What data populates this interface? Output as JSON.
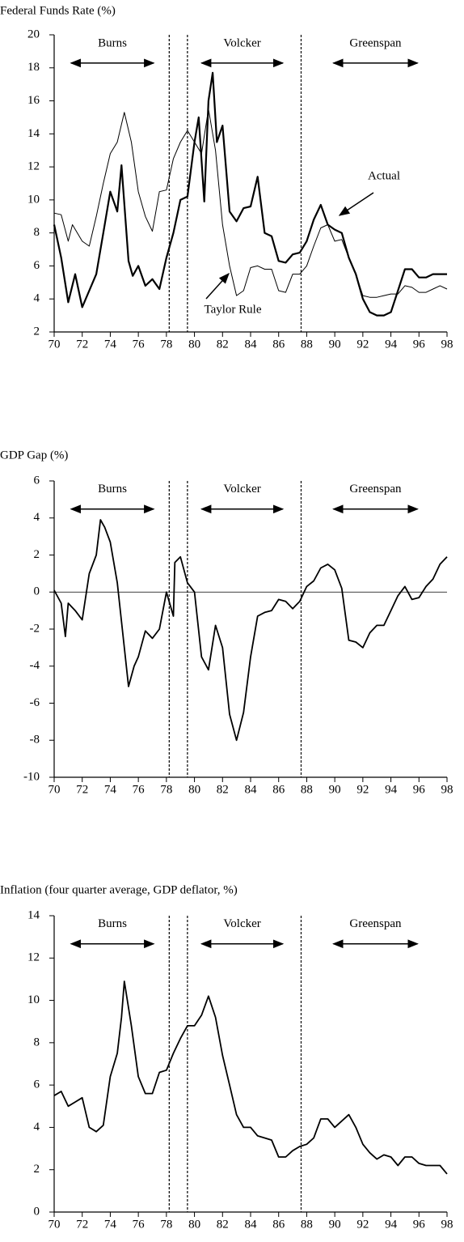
{
  "chart_data": [
    {
      "type": "line",
      "title": "Federal Funds Rate (%)",
      "xlim": [
        70,
        98
      ],
      "xticks": [
        70,
        72,
        74,
        76,
        78,
        80,
        82,
        84,
        86,
        88,
        90,
        92,
        94,
        96,
        98
      ],
      "ylim": [
        2,
        20
      ],
      "yticks": [
        2,
        4,
        6,
        8,
        10,
        12,
        14,
        16,
        18,
        20
      ],
      "vlines": [
        78.2,
        79.5,
        87.6
      ],
      "eras": [
        {
          "label": "Burns",
          "from": 71.2,
          "to": 77.1
        },
        {
          "label": "Volcker",
          "from": 80.5,
          "to": 86.3
        },
        {
          "label": "Greenspan",
          "from": 89.9,
          "to": 95.9
        }
      ],
      "series": [
        {
          "name": "Actual",
          "color": "#000",
          "line_width": 2.2,
          "x": [
            70,
            70.5,
            71,
            71.5,
            72,
            72.5,
            73,
            73.5,
            74,
            74.5,
            74.8,
            75.3,
            75.6,
            76,
            76.5,
            77,
            77.5,
            78,
            78.5,
            79,
            79.5,
            80,
            80.3,
            80.7,
            81,
            81.3,
            81.6,
            82,
            82.5,
            83,
            83.5,
            84,
            84.5,
            85,
            85.5,
            86,
            86.5,
            87,
            87.5,
            88,
            88.5,
            89,
            89.5,
            90,
            90.5,
            91,
            91.5,
            92,
            92.5,
            93,
            93.5,
            94,
            94.5,
            95,
            95.5,
            96,
            96.5,
            97,
            97.5,
            98
          ],
          "values": [
            8.5,
            6.5,
            3.8,
            5.5,
            3.5,
            4.5,
            5.5,
            8,
            10.5,
            9.3,
            12.1,
            6.3,
            5.4,
            6,
            4.8,
            5.2,
            4.6,
            6.5,
            8,
            10,
            10.2,
            13.5,
            15,
            9.9,
            16,
            17.7,
            13.5,
            14.5,
            9.3,
            8.7,
            9.5,
            9.6,
            11.4,
            8,
            7.8,
            6.3,
            6.2,
            6.7,
            6.8,
            7.5,
            8.8,
            9.7,
            8.5,
            8.2,
            8,
            6.5,
            5.5,
            4,
            3.2,
            3,
            3,
            3.2,
            4.5,
            5.8,
            5.8,
            5.3,
            5.3,
            5.5,
            5.5,
            5.5
          ]
        },
        {
          "name": "Taylor Rule",
          "color": "#000",
          "line_width": 1,
          "x": [
            70,
            70.5,
            71,
            71.3,
            72,
            72.5,
            73,
            73.5,
            74,
            74.5,
            75,
            75.5,
            76,
            76.5,
            77,
            77.5,
            78,
            78.5,
            79,
            79.5,
            80,
            80.5,
            81,
            81.5,
            82,
            82.5,
            83,
            83.5,
            84,
            84.5,
            85,
            85.5,
            86,
            86.5,
            87,
            87.5,
            88,
            88.5,
            89,
            89.5,
            90,
            90.5,
            91,
            91.5,
            92,
            92.5,
            93,
            93.5,
            94,
            94.5,
            95,
            95.5,
            96,
            96.5,
            97,
            97.5,
            98
          ],
          "values": [
            9.2,
            9.1,
            7.5,
            8.5,
            7.5,
            7.2,
            9,
            11,
            12.8,
            13.5,
            15.3,
            13.5,
            10.5,
            9,
            8.1,
            10.5,
            10.6,
            12.5,
            13.5,
            14.2,
            13.5,
            12.8,
            15.5,
            13,
            8.5,
            6,
            4.2,
            4.5,
            5.9,
            6,
            5.8,
            5.8,
            4.5,
            4.4,
            5.5,
            5.5,
            6,
            7.2,
            8.3,
            8.5,
            7.5,
            7.6,
            6.5,
            5.5,
            4.2,
            4.1,
            4.1,
            4.2,
            4.3,
            4.3,
            4.8,
            4.7,
            4.4,
            4.4,
            4.6,
            4.8,
            4.6
          ]
        }
      ]
    },
    {
      "type": "line",
      "title": "GDP Gap (%)",
      "xlim": [
        70,
        98
      ],
      "xticks": [
        70,
        72,
        74,
        76,
        78,
        80,
        82,
        84,
        86,
        88,
        90,
        92,
        94,
        96,
        98
      ],
      "ylim": [
        -10,
        6
      ],
      "yticks": [
        -10,
        -8,
        -6,
        -4,
        -2,
        0,
        2,
        4,
        6
      ],
      "hline": 0,
      "vlines": [
        78.2,
        79.5,
        87.6
      ],
      "eras": [
        {
          "label": "Burns",
          "from": 71.2,
          "to": 77.1
        },
        {
          "label": "Volcker",
          "from": 80.5,
          "to": 86.3
        },
        {
          "label": "Greenspan",
          "from": 89.9,
          "to": 95.9
        }
      ],
      "series": [
        {
          "color": "#000",
          "line_width": 1.8,
          "x": [
            70,
            70.5,
            70.8,
            71,
            71.5,
            72,
            72.5,
            73,
            73.3,
            73.6,
            74,
            74.5,
            75,
            75.3,
            75.7,
            76,
            76.5,
            77,
            77.5,
            78,
            78.5,
            78.6,
            79,
            79.5,
            80,
            80.5,
            81,
            81.5,
            82,
            82.5,
            83,
            83.5,
            84,
            84.5,
            85,
            85.5,
            86,
            86.5,
            87,
            87.5,
            88,
            88.5,
            89,
            89.5,
            90,
            90.5,
            91,
            91.5,
            92,
            92.5,
            93,
            93.5,
            94,
            94.5,
            95,
            95.5,
            96,
            96.5,
            97,
            97.5,
            98
          ],
          "values": [
            0.1,
            -0.6,
            -2.4,
            -0.6,
            -1,
            -1.5,
            1,
            2,
            3.9,
            3.5,
            2.7,
            0.5,
            -3,
            -5.1,
            -4,
            -3.5,
            -2.1,
            -2.5,
            -2,
            0,
            -1.3,
            1.6,
            1.9,
            0.5,
            0,
            -3.5,
            -4.2,
            -1.8,
            -3,
            -6.6,
            -8,
            -6.5,
            -3.5,
            -1.3,
            -1.1,
            -1,
            -0.4,
            -0.5,
            -0.9,
            -0.5,
            0.3,
            0.6,
            1.3,
            1.5,
            1.2,
            0.2,
            -2.6,
            -2.7,
            -3,
            -2.2,
            -1.8,
            -1.8,
            -1,
            -0.2,
            0.3,
            -0.4,
            -0.3,
            0.3,
            0.7,
            1.5,
            1.9
          ]
        }
      ]
    },
    {
      "type": "line",
      "title": "Inflation (four quarter average, GDP deflator, %)",
      "xlim": [
        70,
        98
      ],
      "xticks": [
        70,
        72,
        74,
        76,
        78,
        80,
        82,
        84,
        86,
        88,
        90,
        92,
        94,
        96,
        98
      ],
      "ylim": [
        0,
        14
      ],
      "yticks": [
        0,
        2,
        4,
        6,
        8,
        10,
        12,
        14
      ],
      "vlines": [
        78.2,
        79.5,
        87.6
      ],
      "eras": [
        {
          "label": "Burns",
          "from": 71.2,
          "to": 77.1
        },
        {
          "label": "Volcker",
          "from": 80.5,
          "to": 86.3
        },
        {
          "label": "Greenspan",
          "from": 89.9,
          "to": 95.9
        }
      ],
      "series": [
        {
          "color": "#000",
          "line_width": 1.8,
          "x": [
            70,
            70.5,
            71,
            71.5,
            72,
            72.5,
            73,
            73.5,
            74,
            74.5,
            74.8,
            75,
            75.5,
            76,
            76.5,
            77,
            77.5,
            78,
            78.5,
            79,
            79.5,
            80,
            80.5,
            81,
            81.5,
            82,
            82.5,
            83,
            83.5,
            84,
            84.5,
            85,
            85.5,
            86,
            86.5,
            87,
            87.5,
            88,
            88.5,
            89,
            89.5,
            90,
            90.5,
            91,
            91.5,
            92,
            92.5,
            93,
            93.5,
            94,
            94.5,
            95,
            95.5,
            96,
            96.5,
            97,
            97.5,
            98
          ],
          "values": [
            5.5,
            5.7,
            5,
            5.2,
            5.4,
            4,
            3.8,
            4.1,
            6.4,
            7.5,
            9.2,
            10.9,
            8.8,
            6.4,
            5.6,
            5.6,
            6.6,
            6.7,
            7.5,
            8.2,
            8.8,
            8.8,
            9.3,
            10.2,
            9.2,
            7.4,
            6,
            4.6,
            4,
            4,
            3.6,
            3.5,
            3.4,
            2.6,
            2.6,
            2.9,
            3.1,
            3.2,
            3.5,
            4.4,
            4.4,
            4,
            4.3,
            4.6,
            4,
            3.2,
            2.8,
            2.5,
            2.7,
            2.6,
            2.2,
            2.6,
            2.6,
            2.3,
            2.2,
            2.2,
            2.2,
            1.8
          ]
        }
      ]
    }
  ]
}
